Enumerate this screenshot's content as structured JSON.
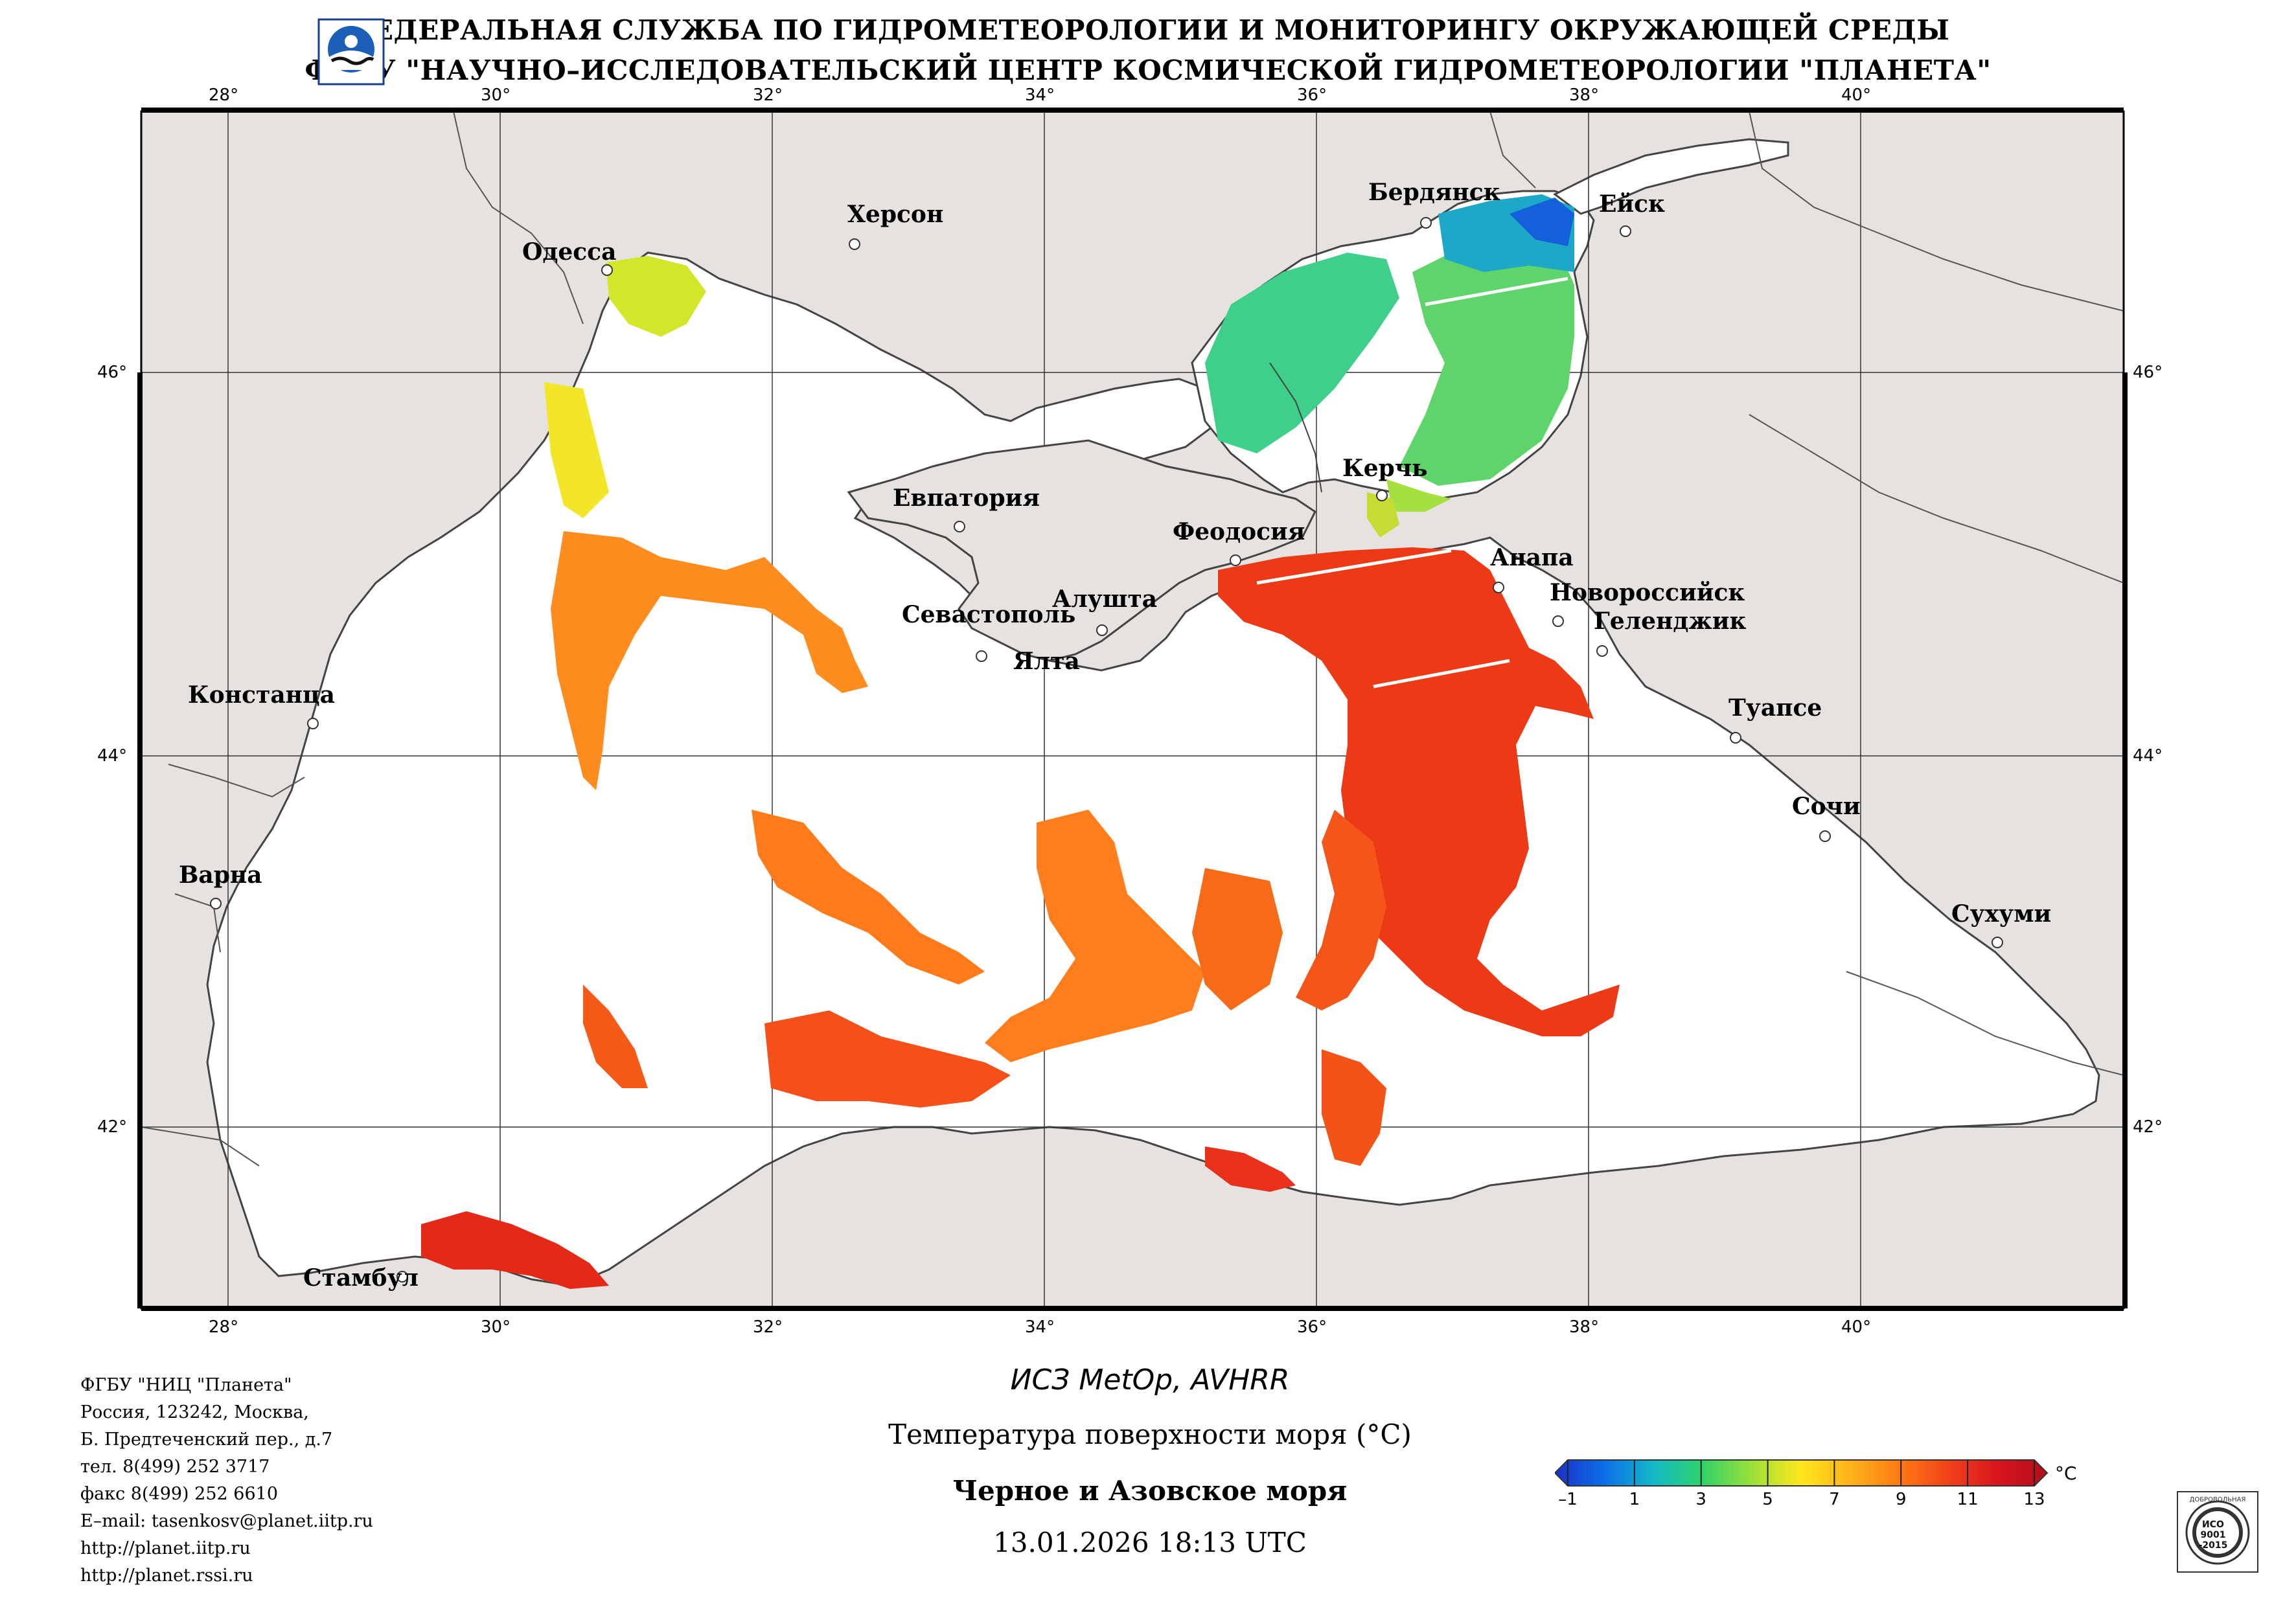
{
  "header": {
    "line1": "ФЕДЕРАЛЬНАЯ СЛУЖБА ПО ГИДРОМЕТЕОРОЛОГИИ И МОНИТОРИНГУ ОКРУЖАЮЩЕЙ СРЕДЫ",
    "line2": "ФГБУ \"НАУЧНО–ИССЛЕДОВАТЕЛЬСКИЙ ЦЕНТР КОСМИЧЕСКОЙ ГИДРОМЕТЕОРОЛОГИИ \"ПЛАНЕТА\""
  },
  "map": {
    "lon_ticks": [
      "28°",
      "30°",
      "32°",
      "34°",
      "36°",
      "38°",
      "40°"
    ],
    "lat_ticks": [
      "46°",
      "44°",
      "42°"
    ],
    "colors": {
      "land": "#e5e2df",
      "sea": "#ffffff",
      "border": "#444444",
      "grid": "#333333"
    },
    "cities": [
      {
        "name": "Одесса"
      },
      {
        "name": "Херсон"
      },
      {
        "name": "Бердянск"
      },
      {
        "name": "Ейск"
      },
      {
        "name": "Евпатория"
      },
      {
        "name": "Керчь"
      },
      {
        "name": "Феодосия"
      },
      {
        "name": "Анапа"
      },
      {
        "name": "Севастополь"
      },
      {
        "name": "Алушта"
      },
      {
        "name": "Новороссийск"
      },
      {
        "name": "Геленджик"
      },
      {
        "name": "Ялта"
      },
      {
        "name": "Туапсе"
      },
      {
        "name": "Констанца"
      },
      {
        "name": "Сочи"
      },
      {
        "name": "Варна"
      },
      {
        "name": "Сухуми"
      },
      {
        "name": "Стамбул"
      }
    ]
  },
  "info": {
    "org": "ФГБУ \"НИЦ \"Планета\"",
    "addr1": "Россия, 123242, Москва,",
    "addr2": "Б. Предтеченский пер., д.7",
    "tel": "тел. 8(499) 252 3717",
    "fax": "факс 8(499) 252 6610",
    "email": "E–mail: tasenkosv@planet.iitp.ru",
    "url1": "http://planet.iitp.ru",
    "url2": "http://planet.rssi.ru"
  },
  "caption": {
    "satellite": "ИСЗ MetOp, AVHRR",
    "title": "Температура поверхности моря (°C)",
    "sea": "Черное и Азовское моря",
    "datetime": "13.01.2026 18:13 UTC"
  },
  "colorbar": {
    "unit": "°C",
    "labels": [
      "–1",
      "1",
      "3",
      "5",
      "7",
      "9",
      "11",
      "13"
    ],
    "min": -1,
    "max": 13,
    "stops": [
      "#1a2fc9",
      "#0b6fe6",
      "#14b8c8",
      "#2fd36a",
      "#9be03a",
      "#ffe71c",
      "#ffb21a",
      "#ff7a14",
      "#f2421a",
      "#d8141e",
      "#b0101a"
    ]
  },
  "certificate": {
    "line1": "ДОБРОВОЛЬНАЯ",
    "line2": "ИСО",
    "line3": "9001",
    "line4": "-2015"
  }
}
